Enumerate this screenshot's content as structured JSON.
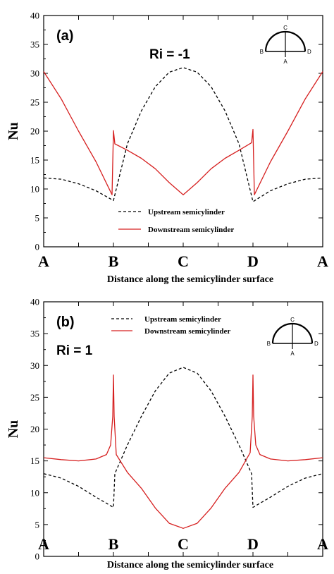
{
  "colors": {
    "upstream": "#000000",
    "downstream": "#d62020"
  },
  "chart_data": [
    {
      "type": "line",
      "panel": "(a)",
      "annotation": "Ri = -1",
      "ylabel": "Nu",
      "xlabel": "Distance along the semicylinder surface",
      "ylim": [
        0,
        40
      ],
      "yticks": [
        0,
        5,
        10,
        15,
        20,
        25,
        30,
        35,
        40
      ],
      "xlim": [
        0,
        4
      ],
      "xticks": [
        0,
        0.5,
        1,
        1.5,
        2,
        2.5,
        3,
        3.5,
        4
      ],
      "xtick_labels": [
        "A",
        "",
        "B",
        "",
        "C",
        "",
        "D",
        "",
        "A"
      ],
      "legend_position": "bottom-center",
      "inset_labels": [
        "A",
        "B",
        "C",
        "D"
      ],
      "series": [
        {
          "name": "Upstream semicylinder",
          "style": "dashed",
          "x": [
            0,
            0.25,
            0.5,
            0.75,
            1,
            1.2,
            1.4,
            1.6,
            1.8,
            2,
            2.2,
            2.4,
            2.6,
            2.8,
            3,
            3.25,
            3.5,
            3.75,
            4
          ],
          "y": [
            11.9,
            11.7,
            10.9,
            9.7,
            8.0,
            17.8,
            23.5,
            27.7,
            30.2,
            31.0,
            30.2,
            27.7,
            23.5,
            17.8,
            7.8,
            9.7,
            10.9,
            11.7,
            11.9
          ]
        },
        {
          "name": "Downstream semicylinder",
          "style": "solid",
          "x": [
            0,
            0.25,
            0.5,
            0.75,
            0.98,
            1.0,
            1.02,
            1.2,
            1.4,
            1.6,
            1.8,
            2,
            2.2,
            2.4,
            2.6,
            2.8,
            2.98,
            3.0,
            3.02,
            3.25,
            3.5,
            3.75,
            4
          ],
          "y": [
            30.3,
            25.6,
            20.0,
            14.7,
            9.0,
            20.1,
            17.8,
            16.7,
            15.3,
            13.5,
            11.1,
            9.0,
            11.1,
            13.5,
            15.3,
            16.7,
            18.0,
            20.3,
            9.0,
            14.7,
            20.0,
            25.6,
            30.3
          ]
        }
      ]
    },
    {
      "type": "line",
      "panel": "(b)",
      "annotation": "Ri = 1",
      "ylabel": "Nu",
      "xlabel": "Distance along the semicylinder surface",
      "ylim": [
        0,
        40
      ],
      "yticks": [
        0,
        5,
        10,
        15,
        20,
        25,
        30,
        35,
        40
      ],
      "xlim": [
        0,
        4
      ],
      "xticks": [
        0,
        0.5,
        1,
        1.5,
        2,
        2.5,
        3,
        3.5,
        4
      ],
      "xtick_labels": [
        "A",
        "",
        "B",
        "",
        "C",
        "",
        "D",
        "",
        "A"
      ],
      "legend_position": "top-center",
      "inset_labels": [
        "A",
        "B",
        "C",
        "D"
      ],
      "series": [
        {
          "name": "Upstream semicylinder",
          "style": "dashed",
          "x": [
            0,
            0.25,
            0.5,
            0.75,
            1,
            1.02,
            1.2,
            1.4,
            1.6,
            1.8,
            2,
            2.2,
            2.4,
            2.6,
            2.8,
            2.98,
            3,
            3.25,
            3.5,
            3.75,
            4
          ],
          "y": [
            13.0,
            12.3,
            11.0,
            9.3,
            7.7,
            13.0,
            17.5,
            22.0,
            26.0,
            28.8,
            29.7,
            28.8,
            26.0,
            22.0,
            17.5,
            13.0,
            7.7,
            9.3,
            11.0,
            12.3,
            13.0
          ],
          "x_note": "dashed ends continue into the peaks"
        },
        {
          "name": "Downstream semicylinder",
          "style": "solid",
          "x": [
            0,
            0.25,
            0.5,
            0.75,
            0.9,
            0.96,
            0.99,
            1.0,
            1.01,
            1.04,
            1.2,
            1.4,
            1.6,
            1.8,
            2,
            2.2,
            2.4,
            2.6,
            2.8,
            2.96,
            2.99,
            3.0,
            3.01,
            3.04,
            3.1,
            3.25,
            3.5,
            3.75,
            4
          ],
          "y": [
            15.5,
            15.2,
            15.0,
            15.3,
            16.0,
            17.5,
            22.0,
            28.5,
            22.0,
            16.0,
            13.2,
            10.7,
            7.6,
            5.2,
            4.4,
            5.2,
            7.6,
            10.7,
            13.2,
            16.3,
            22.0,
            28.5,
            22.0,
            17.5,
            16.0,
            15.3,
            15.0,
            15.2,
            15.5
          ]
        }
      ]
    }
  ]
}
